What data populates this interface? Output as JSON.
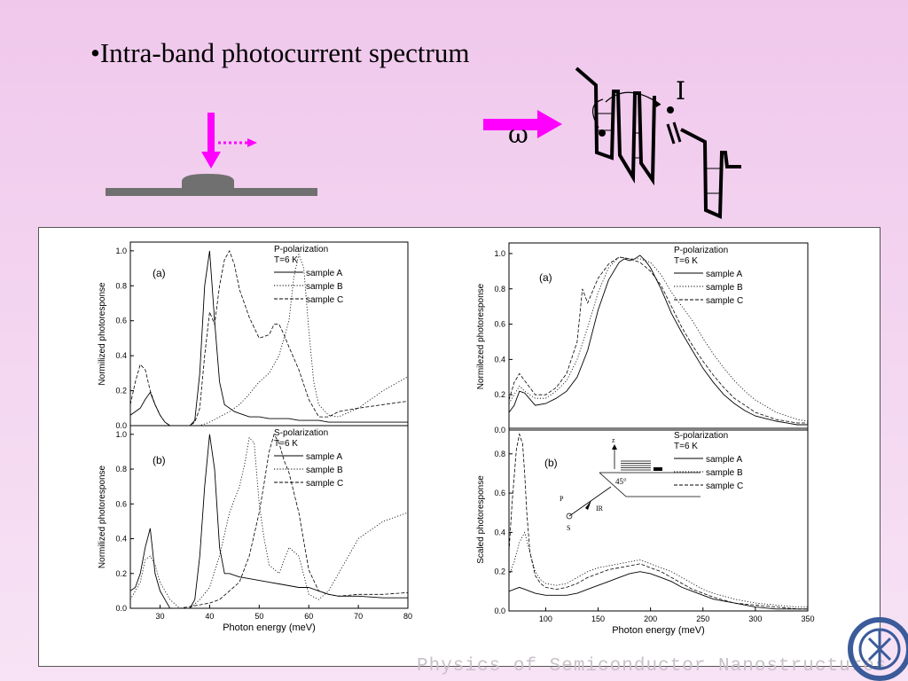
{
  "slide": {
    "title": "•Intra-band photocurrent spectrum",
    "omega_label": "ω",
    "current_label": "I",
    "footer": "Physics of Semiconductor Nanostructures"
  },
  "inset": {
    "z_label": "z",
    "angle_label": "45°",
    "p_label": "P",
    "s_label": "S",
    "ir_label": "IR"
  },
  "colors": {
    "background_top": "#f0c8ec",
    "arrow": "#ff00ff",
    "substrate": "#707070",
    "dot": "#000000"
  },
  "chart_data": [
    {
      "id": "left-top",
      "type": "line",
      "panel_label": "(a)",
      "legend_title": [
        "P-polarization",
        "T=6 K"
      ],
      "xlabel": "",
      "ylabel": "Normilized photoresponse",
      "xlim": [
        24,
        80
      ],
      "ylim": [
        0,
        1.05
      ],
      "yticks": [
        0.0,
        0.2,
        0.4,
        0.6,
        0.8,
        1.0
      ],
      "ytick_labels": [
        "0.0",
        "0.2",
        "0.4",
        "0.6",
        "0.8",
        "1.0"
      ],
      "xticks": [],
      "series": [
        {
          "name": "sample A",
          "style": "solid",
          "x": [
            24,
            25,
            26,
            27,
            28,
            29,
            30,
            31,
            32,
            34,
            36,
            37,
            38,
            39,
            40,
            41,
            42,
            43,
            44,
            45,
            46,
            48,
            50,
            52,
            54,
            56,
            58,
            60,
            62,
            64,
            66,
            70,
            75,
            80
          ],
          "y": [
            0.06,
            0.08,
            0.1,
            0.15,
            0.19,
            0.12,
            0.06,
            0.02,
            0.0,
            0.0,
            0.0,
            0.03,
            0.3,
            0.8,
            1.0,
            0.6,
            0.25,
            0.12,
            0.1,
            0.08,
            0.07,
            0.05,
            0.05,
            0.04,
            0.04,
            0.04,
            0.03,
            0.03,
            0.03,
            0.02,
            0.02,
            0.02,
            0.02,
            0.02
          ]
        },
        {
          "name": "sample B",
          "style": "dotted",
          "x": [
            24,
            30,
            34,
            38,
            40,
            42,
            44,
            46,
            48,
            50,
            52,
            54,
            56,
            57,
            58,
            59,
            60,
            61,
            62,
            64,
            66,
            70,
            75,
            80
          ],
          "y": [
            0.0,
            0.0,
            0.0,
            0.0,
            0.02,
            0.05,
            0.08,
            0.12,
            0.18,
            0.25,
            0.3,
            0.4,
            0.6,
            0.85,
            0.98,
            0.9,
            0.55,
            0.25,
            0.12,
            0.06,
            0.05,
            0.1,
            0.2,
            0.28
          ]
        },
        {
          "name": "sample C",
          "style": "dashed",
          "x": [
            24,
            25,
            26,
            27,
            28,
            29,
            30,
            31,
            32,
            34,
            36,
            37,
            38,
            39,
            40,
            41,
            42,
            43,
            44,
            45,
            46,
            48,
            50,
            52,
            53,
            54,
            55,
            56,
            58,
            60,
            62,
            64,
            66,
            70,
            75,
            80
          ],
          "y": [
            0.12,
            0.25,
            0.35,
            0.32,
            0.2,
            0.12,
            0.06,
            0.02,
            0.0,
            0.0,
            0.0,
            0.02,
            0.1,
            0.4,
            0.65,
            0.58,
            0.8,
            0.95,
            1.0,
            0.92,
            0.78,
            0.62,
            0.5,
            0.52,
            0.58,
            0.58,
            0.52,
            0.45,
            0.32,
            0.15,
            0.05,
            0.05,
            0.08,
            0.1,
            0.12,
            0.14
          ]
        }
      ]
    },
    {
      "id": "left-bottom",
      "type": "line",
      "panel_label": "(b)",
      "legend_title": [
        "S-polarization",
        "T=6 K"
      ],
      "xlabel": "Photon energy (meV)",
      "ylabel": "Normilized photoresponse",
      "xlim": [
        24,
        80
      ],
      "ylim": [
        0,
        1.05
      ],
      "yticks": [
        0.0,
        0.2,
        0.4,
        0.6,
        0.8,
        1.0
      ],
      "ytick_labels": [
        "0.0",
        "0.2",
        "0.4",
        "0.6",
        "0.8",
        "1.0"
      ],
      "xticks": [
        30,
        40,
        50,
        60,
        70,
        80
      ],
      "xtick_labels": [
        "30",
        "40",
        "50",
        "60",
        "70",
        "80"
      ],
      "series": [
        {
          "name": "sample A",
          "style": "solid",
          "x": [
            24,
            25,
            26,
            27,
            28,
            29,
            30,
            31,
            32,
            34,
            36,
            37,
            38,
            39,
            40,
            41,
            42,
            43,
            44,
            46,
            48,
            50,
            52,
            54,
            56,
            58,
            60,
            62,
            64,
            66,
            70,
            75,
            80
          ],
          "y": [
            0.1,
            0.12,
            0.2,
            0.35,
            0.46,
            0.2,
            0.1,
            0.05,
            0.0,
            0.0,
            0.0,
            0.05,
            0.3,
            0.7,
            1.0,
            0.8,
            0.35,
            0.2,
            0.2,
            0.18,
            0.17,
            0.16,
            0.15,
            0.14,
            0.13,
            0.12,
            0.12,
            0.1,
            0.08,
            0.07,
            0.07,
            0.06,
            0.06
          ]
        },
        {
          "name": "sample B",
          "style": "dotted",
          "x": [
            24,
            26,
            27,
            28,
            29,
            30,
            32,
            34,
            36,
            38,
            40,
            42,
            44,
            46,
            47,
            48,
            49,
            50,
            51,
            52,
            54,
            56,
            58,
            60,
            62,
            64,
            66,
            70,
            75,
            80
          ],
          "y": [
            0.05,
            0.15,
            0.28,
            0.3,
            0.25,
            0.15,
            0.05,
            0.0,
            0.0,
            0.05,
            0.12,
            0.3,
            0.55,
            0.7,
            0.82,
            0.98,
            0.95,
            0.6,
            0.4,
            0.25,
            0.2,
            0.35,
            0.3,
            0.08,
            0.05,
            0.1,
            0.2,
            0.4,
            0.5,
            0.55
          ]
        },
        {
          "name": "sample C",
          "style": "dashed",
          "x": [
            24,
            30,
            34,
            38,
            40,
            42,
            44,
            46,
            48,
            50,
            51,
            52,
            53,
            54,
            55,
            56,
            58,
            60,
            62,
            64,
            66,
            70,
            75,
            80
          ],
          "y": [
            0.0,
            0.0,
            0.0,
            0.02,
            0.03,
            0.05,
            0.1,
            0.15,
            0.3,
            0.55,
            0.72,
            0.9,
            1.0,
            0.95,
            0.85,
            0.78,
            0.55,
            0.22,
            0.1,
            0.08,
            0.07,
            0.08,
            0.08,
            0.09
          ]
        }
      ]
    },
    {
      "id": "right-top",
      "type": "line",
      "panel_label": "(a)",
      "legend_title": [
        "P-polarization",
        "T=6 K"
      ],
      "xlabel": "",
      "ylabel": "Normilezed photoresponse",
      "xlim": [
        65,
        350
      ],
      "ylim": [
        0,
        1.06
      ],
      "yticks": [
        0.0,
        0.2,
        0.4,
        0.6,
        0.8,
        1.0
      ],
      "ytick_labels": [
        "0.0",
        "0.2",
        "0.4",
        "0.6",
        "0.8",
        "1.0"
      ],
      "xticks": [],
      "series": [
        {
          "name": "sample A",
          "style": "solid",
          "x": [
            65,
            70,
            75,
            80,
            90,
            100,
            110,
            120,
            130,
            140,
            150,
            160,
            170,
            175,
            180,
            185,
            190,
            195,
            200,
            210,
            220,
            230,
            240,
            250,
            260,
            270,
            280,
            290,
            300,
            320,
            340,
            350
          ],
          "y": [
            0.1,
            0.14,
            0.22,
            0.21,
            0.14,
            0.15,
            0.18,
            0.22,
            0.3,
            0.45,
            0.68,
            0.85,
            0.95,
            0.97,
            0.96,
            0.97,
            0.99,
            0.96,
            0.92,
            0.8,
            0.66,
            0.55,
            0.45,
            0.35,
            0.27,
            0.2,
            0.15,
            0.11,
            0.08,
            0.05,
            0.03,
            0.03
          ]
        },
        {
          "name": "sample B",
          "style": "dotted",
          "x": [
            65,
            70,
            75,
            80,
            90,
            100,
            110,
            120,
            130,
            140,
            150,
            160,
            170,
            180,
            190,
            200,
            210,
            220,
            230,
            240,
            250,
            260,
            270,
            280,
            290,
            300,
            320,
            340,
            350
          ],
          "y": [
            0.15,
            0.2,
            0.25,
            0.22,
            0.18,
            0.18,
            0.22,
            0.28,
            0.4,
            0.58,
            0.78,
            0.92,
            0.98,
            0.97,
            0.97,
            0.95,
            0.88,
            0.78,
            0.7,
            0.62,
            0.52,
            0.43,
            0.35,
            0.28,
            0.22,
            0.17,
            0.1,
            0.06,
            0.05
          ]
        },
        {
          "name": "sample C",
          "style": "dashed",
          "x": [
            65,
            70,
            75,
            80,
            90,
            100,
            110,
            120,
            130,
            135,
            140,
            150,
            160,
            170,
            180,
            190,
            200,
            210,
            220,
            230,
            240,
            250,
            260,
            270,
            280,
            290,
            300,
            320,
            340,
            350
          ],
          "y": [
            0.17,
            0.27,
            0.32,
            0.28,
            0.2,
            0.2,
            0.24,
            0.32,
            0.5,
            0.8,
            0.72,
            0.86,
            0.94,
            0.98,
            0.97,
            0.95,
            0.9,
            0.82,
            0.7,
            0.58,
            0.48,
            0.39,
            0.31,
            0.24,
            0.18,
            0.14,
            0.1,
            0.06,
            0.04,
            0.04
          ]
        }
      ]
    },
    {
      "id": "right-bottom",
      "type": "line",
      "panel_label": "(b)",
      "legend_title": [
        "S-polarization",
        "T=6 K"
      ],
      "xlabel": "Photon energy (meV)",
      "ylabel": "Scaled photoresponse",
      "xlim": [
        65,
        350
      ],
      "ylim": [
        0,
        0.93
      ],
      "yticks": [
        0.0,
        0.2,
        0.4,
        0.6,
        0.8
      ],
      "ytick_labels": [
        "0.0",
        "0.2",
        "0.4",
        "0.6",
        "0.8"
      ],
      "xticks": [
        100,
        150,
        200,
        250,
        300,
        350
      ],
      "xtick_labels": [
        "100",
        "150",
        "200",
        "250",
        "300",
        "350"
      ],
      "series": [
        {
          "name": "sample A",
          "style": "solid",
          "x": [
            65,
            70,
            75,
            80,
            85,
            90,
            100,
            110,
            120,
            130,
            140,
            150,
            160,
            170,
            180,
            190,
            200,
            210,
            220,
            230,
            240,
            250,
            260,
            280,
            300,
            320,
            340,
            350
          ],
          "y": [
            0.1,
            0.11,
            0.12,
            0.11,
            0.1,
            0.09,
            0.08,
            0.08,
            0.08,
            0.09,
            0.11,
            0.13,
            0.15,
            0.17,
            0.19,
            0.2,
            0.19,
            0.17,
            0.15,
            0.12,
            0.1,
            0.08,
            0.06,
            0.04,
            0.02,
            0.01,
            0.01,
            0.01
          ]
        },
        {
          "name": "sample B",
          "style": "dotted",
          "x": [
            65,
            70,
            75,
            80,
            85,
            90,
            95,
            100,
            110,
            120,
            130,
            140,
            150,
            160,
            170,
            180,
            190,
            200,
            210,
            220,
            230,
            240,
            250,
            260,
            280,
            300,
            320,
            340,
            350
          ],
          "y": [
            0.18,
            0.25,
            0.35,
            0.4,
            0.3,
            0.2,
            0.16,
            0.14,
            0.13,
            0.14,
            0.17,
            0.2,
            0.22,
            0.23,
            0.24,
            0.25,
            0.26,
            0.24,
            0.22,
            0.2,
            0.17,
            0.14,
            0.11,
            0.09,
            0.06,
            0.04,
            0.03,
            0.02,
            0.02
          ]
        },
        {
          "name": "sample C",
          "style": "dashed",
          "x": [
            65,
            68,
            72,
            75,
            78,
            80,
            82,
            85,
            90,
            95,
            100,
            110,
            120,
            130,
            140,
            150,
            160,
            170,
            180,
            190,
            200,
            210,
            220,
            230,
            240,
            250,
            260,
            280,
            300,
            320,
            340,
            350
          ],
          "y": [
            0.3,
            0.55,
            0.82,
            0.9,
            0.85,
            0.7,
            0.5,
            0.3,
            0.18,
            0.14,
            0.12,
            0.11,
            0.12,
            0.14,
            0.17,
            0.19,
            0.21,
            0.22,
            0.23,
            0.24,
            0.22,
            0.2,
            0.17,
            0.14,
            0.11,
            0.09,
            0.07,
            0.04,
            0.03,
            0.02,
            0.01,
            0.01
          ]
        }
      ]
    }
  ]
}
